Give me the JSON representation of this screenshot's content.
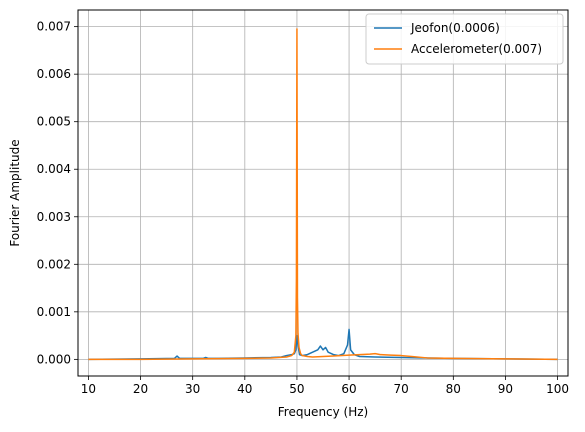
{
  "chart_data": {
    "type": "line",
    "title": "",
    "xlabel": "Frequency (Hz)",
    "ylabel": "Fourier Amplitude",
    "xlim": [
      8,
      102
    ],
    "ylim": [
      -0.00035,
      0.00735
    ],
    "x_ticks": [
      10,
      20,
      30,
      40,
      50,
      60,
      70,
      80,
      90,
      100
    ],
    "x_tick_labels": [
      "10",
      "20",
      "30",
      "40",
      "50",
      "60",
      "70",
      "80",
      "90",
      "100"
    ],
    "y_ticks": [
      0,
      0.001,
      0.002,
      0.003,
      0.004,
      0.005,
      0.006,
      0.007
    ],
    "y_tick_labels": [
      "0.000",
      "0.001",
      "0.002",
      "0.003",
      "0.004",
      "0.005",
      "0.006",
      "0.007"
    ],
    "grid": true,
    "legend_position": "top-right",
    "series": [
      {
        "name": "Jeofon(0.0006)",
        "color": "#1f77b4",
        "x": [
          10,
          20,
          26.5,
          27,
          27.5,
          30,
          32,
          32.5,
          33,
          35,
          40,
          45,
          47,
          48,
          49,
          49.5,
          49.8,
          50,
          50.2,
          50.5,
          51,
          52,
          53,
          54,
          54.5,
          55,
          55.5,
          56,
          57,
          58,
          59,
          59.7,
          60,
          60.3,
          61,
          62,
          65,
          70,
          75,
          80,
          90,
          100
        ],
        "y": [
          0,
          1e-05,
          2e-05,
          7e-05,
          2e-05,
          2e-05,
          2e-05,
          4e-05,
          2e-05,
          2e-05,
          3e-05,
          4e-05,
          5e-05,
          8e-05,
          0.0001,
          0.00012,
          0.0002,
          0.0005,
          0.0003,
          0.0001,
          8e-05,
          0.0001,
          0.00015,
          0.0002,
          0.00028,
          0.0002,
          0.00025,
          0.00015,
          0.0001,
          8e-05,
          0.00012,
          0.0003,
          0.00063,
          0.0002,
          0.0001,
          6e-05,
          5e-05,
          4e-05,
          3e-05,
          2e-05,
          1e-05,
          0
        ]
      },
      {
        "name": "Accelerometer(0.007)",
        "color": "#ff7f0e",
        "x": [
          10,
          20,
          30,
          40,
          45,
          48,
          49,
          49.5,
          49.8,
          49.9,
          50,
          50.1,
          50.2,
          50.4,
          50.7,
          51,
          52,
          53,
          55,
          57,
          60,
          62,
          64,
          65,
          66,
          68,
          70,
          72,
          75,
          80,
          90,
          100
        ],
        "y": [
          0,
          0,
          1e-05,
          2e-05,
          3e-05,
          5e-05,
          8e-05,
          0.00015,
          0.0005,
          0.0017,
          0.00695,
          0.0013,
          0.00055,
          0.00025,
          0.00012,
          8e-05,
          6e-05,
          5e-05,
          6e-05,
          7e-05,
          9e-05,
          0.0001,
          0.00011,
          0.00012,
          0.0001,
          9e-05,
          8e-05,
          6e-05,
          3e-05,
          2e-05,
          1e-05,
          0
        ]
      }
    ]
  }
}
